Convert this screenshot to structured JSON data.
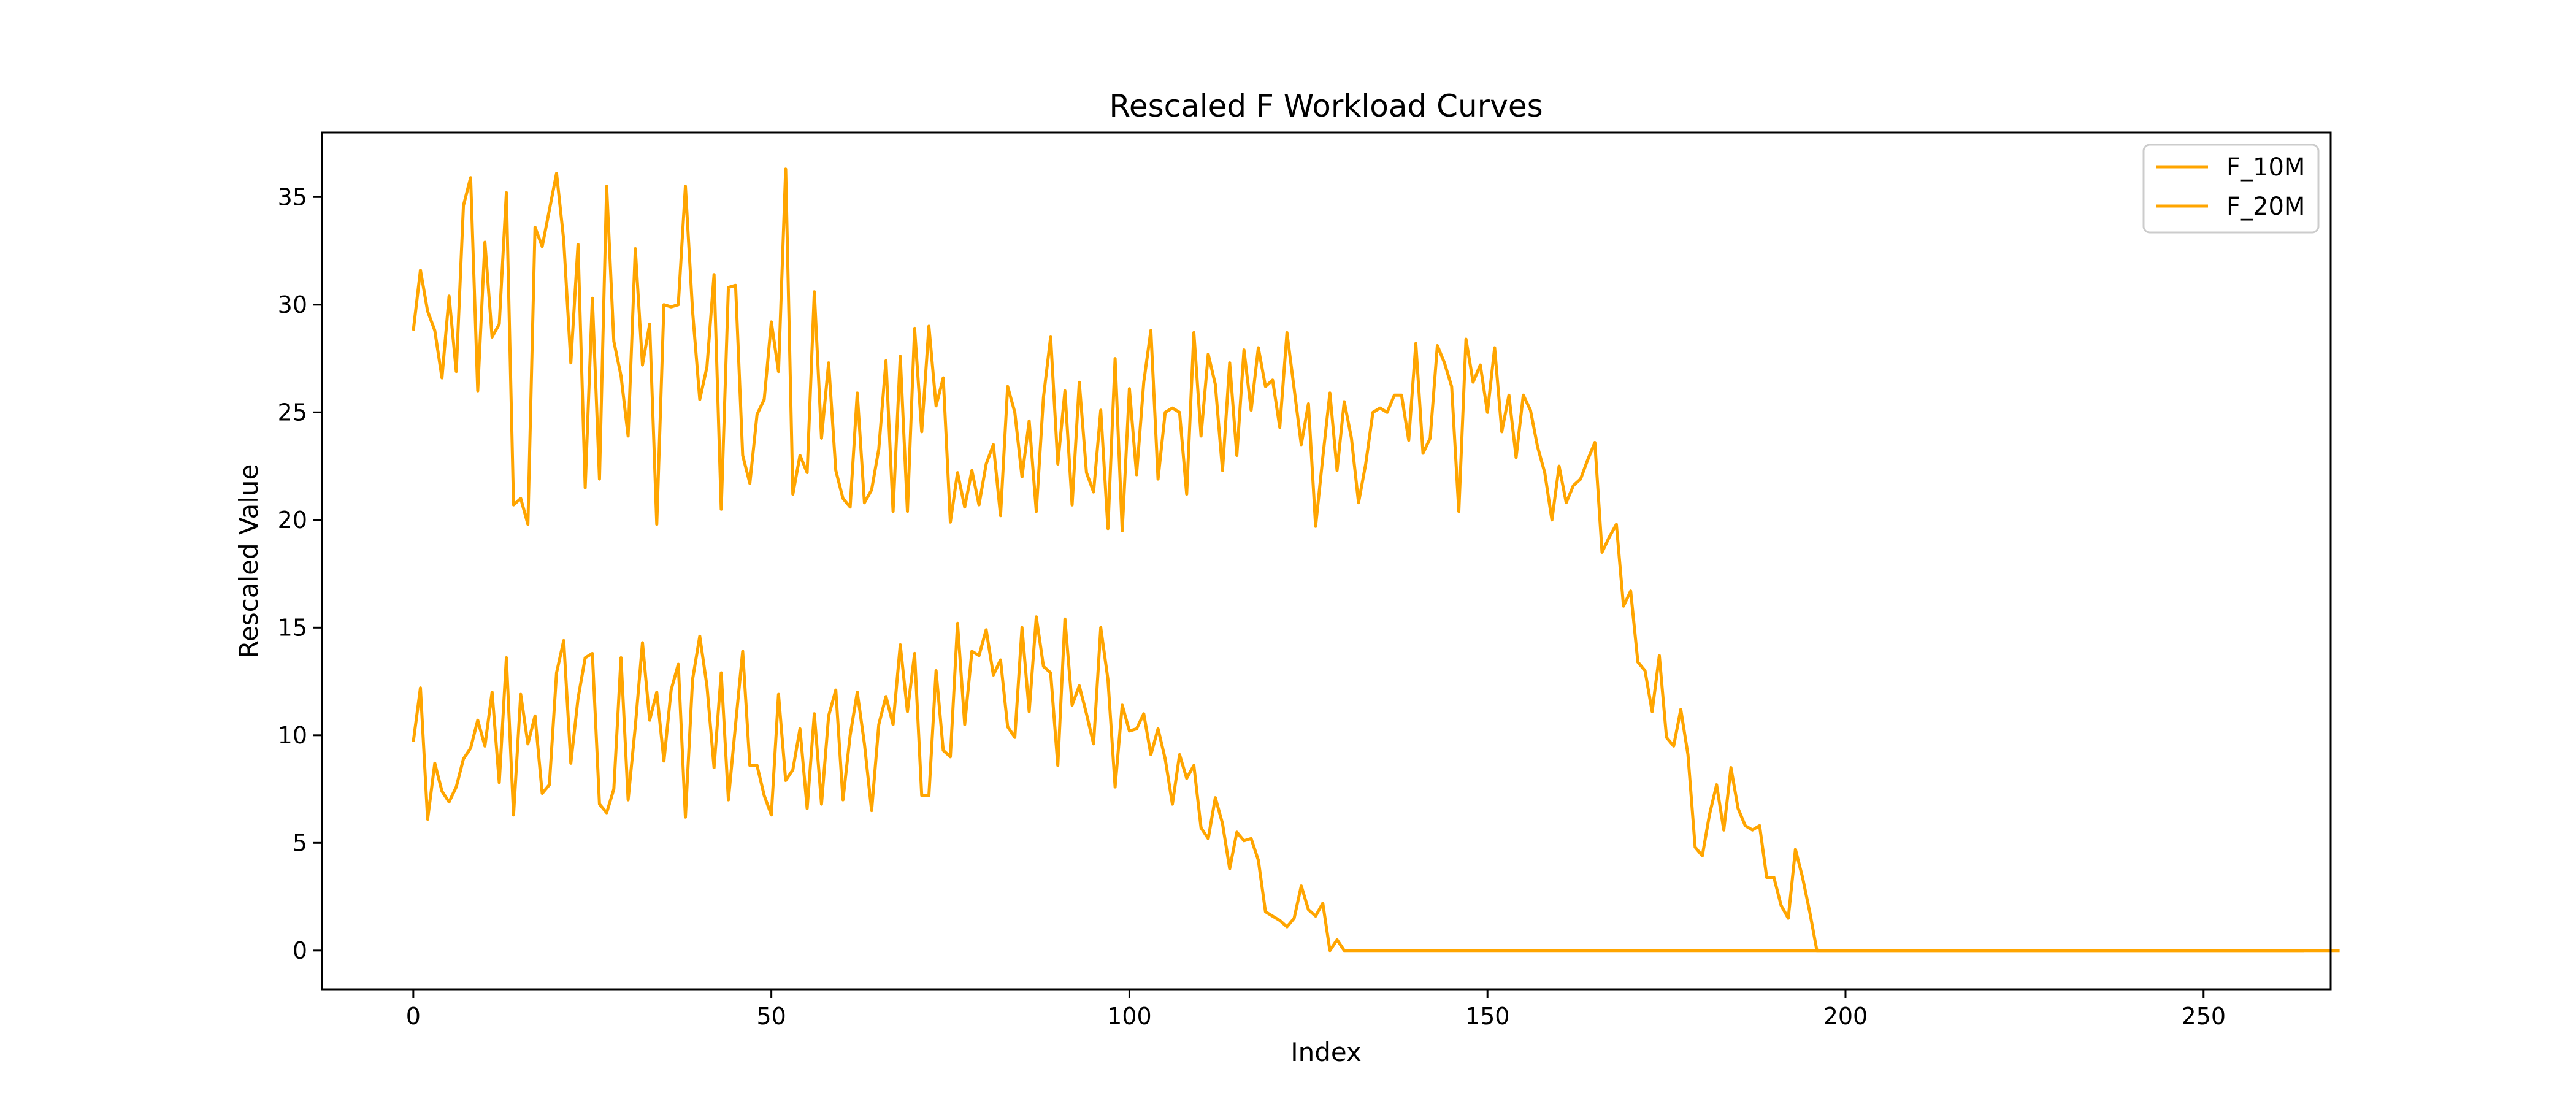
{
  "chart_data": {
    "type": "line",
    "title": "Rescaled F Workload Curves",
    "xlabel": "Index",
    "ylabel": "Rescaled Value",
    "xlim": [
      -12.75,
      267.75
    ],
    "ylim": [
      -1.8,
      38
    ],
    "xticks": [
      0,
      50,
      100,
      150,
      200,
      250
    ],
    "yticks": [
      0,
      5,
      10,
      15,
      20,
      25,
      30,
      35
    ],
    "grid": false,
    "legend_position": "top-right",
    "series": [
      {
        "name": "F_10M",
        "color": "#ffa500",
        "x_start": 0,
        "values": [
          9.7,
          12.2,
          6.1,
          8.7,
          7.4,
          6.9,
          7.6,
          8.9,
          9.4,
          10.7,
          9.5,
          12.0,
          7.8,
          13.6,
          6.3,
          11.9,
          9.6,
          10.9,
          7.3,
          7.7,
          12.9,
          14.4,
          8.7,
          11.7,
          13.6,
          13.8,
          6.8,
          6.4,
          7.5,
          13.6,
          7.0,
          10.4,
          14.3,
          10.7,
          12.0,
          8.8,
          12.1,
          13.3,
          6.2,
          12.6,
          14.6,
          12.3,
          8.5,
          12.9,
          7.0,
          10.5,
          13.9,
          8.6,
          8.6,
          7.2,
          6.3,
          11.9,
          7.9,
          8.4,
          10.3,
          6.6,
          11.0,
          6.8,
          10.9,
          12.1,
          7.0,
          10.0,
          12.0,
          9.6,
          6.5,
          10.5,
          11.8,
          10.5,
          14.2,
          11.1,
          13.8,
          7.2,
          7.2,
          13.0,
          9.3,
          9.0,
          15.2,
          10.5,
          13.9,
          13.7,
          14.9,
          12.8,
          13.5,
          10.4,
          9.9,
          15.0,
          11.1,
          15.5,
          13.2,
          12.9,
          8.6,
          15.4,
          11.4,
          12.3,
          11.0,
          9.6,
          15.0,
          12.6,
          7.6,
          11.4,
          10.2,
          10.3,
          11.0,
          9.1,
          10.3,
          8.9,
          6.8,
          9.1,
          8.0,
          8.6,
          5.7,
          5.2,
          7.1,
          5.9,
          3.8,
          5.5,
          5.1,
          5.2,
          4.2,
          1.8,
          1.6,
          1.4,
          1.1,
          1.5,
          3.0,
          1.9,
          1.6,
          2.2,
          0.0,
          0.5,
          0.0,
          0.0,
          0.0,
          0.0,
          0.0,
          0.0,
          0.0,
          0.0,
          0.0,
          0.0,
          0.0,
          0.0,
          0.0,
          0.0,
          0.0,
          0.0,
          0.0,
          0.0,
          0.0,
          0.0,
          0.0,
          0.0,
          0.0,
          0.0,
          0.0,
          0.0,
          0.0,
          0.0,
          0.0,
          0.0,
          0.0,
          0.0,
          0.0,
          0.0,
          0.0,
          0.0,
          0.0,
          0.0,
          0.0,
          0.0,
          0.0,
          0.0,
          0.0,
          0.0,
          0.0,
          0.0,
          0.0,
          0.0,
          0.0,
          0.0,
          0.0,
          0.0,
          0.0,
          0.0,
          0.0,
          0.0,
          0.0,
          0.0,
          0.0,
          0.0,
          0.0,
          0.0,
          0.0,
          0.0,
          0.0,
          0.0,
          0.0,
          0.0,
          0.0,
          0.0,
          0.0,
          0.0,
          0.0,
          0.0,
          0.0,
          0.0,
          0.0,
          0.0,
          0.0,
          0.0,
          0.0,
          0.0,
          0.0,
          0.0,
          0.0,
          0.0,
          0.0,
          0.0,
          0.0,
          0.0,
          0.0,
          0.0,
          0.0,
          0.0,
          0.0,
          0.0,
          0.0,
          0.0,
          0.0,
          0.0,
          0.0,
          0.0,
          0.0,
          0.0,
          0.0,
          0.0,
          0.0,
          0.0,
          0.0,
          0.0,
          0.0,
          0.0,
          0.0,
          0.0,
          0.0,
          0.0,
          0.0,
          0.0,
          0.0,
          0.0,
          0.0,
          0.0,
          0.0,
          0.0,
          0.0,
          0.0,
          0.0,
          0.0,
          0.0,
          0.0,
          0.0,
          0.0,
          0.0,
          0.0,
          0.0,
          0.0,
          0.0,
          0.0,
          0.0,
          0.0
        ]
      },
      {
        "name": "F_20M",
        "color": "#ffa500",
        "x_start": 0,
        "values": [
          28.8,
          31.6,
          29.7,
          28.8,
          26.6,
          30.4,
          26.9,
          34.6,
          35.9,
          26.0,
          32.9,
          28.5,
          29.1,
          35.2,
          20.7,
          21.0,
          19.8,
          33.6,
          32.7,
          34.4,
          36.1,
          33.0,
          27.3,
          32.8,
          21.5,
          30.3,
          21.9,
          35.5,
          28.3,
          26.7,
          23.9,
          32.6,
          27.2,
          29.1,
          19.8,
          30.0,
          29.9,
          30.0,
          35.5,
          29.7,
          25.6,
          27.1,
          31.4,
          20.5,
          30.8,
          30.9,
          23.0,
          21.7,
          24.9,
          25.6,
          29.2,
          26.9,
          36.3,
          21.2,
          23.0,
          22.2,
          30.6,
          23.8,
          27.3,
          22.3,
          21.0,
          20.6,
          25.9,
          20.8,
          21.4,
          23.3,
          27.4,
          20.4,
          27.6,
          20.4,
          28.9,
          24.1,
          29.0,
          25.3,
          26.6,
          19.9,
          22.2,
          20.6,
          22.3,
          20.7,
          22.6,
          23.5,
          20.2,
          26.2,
          25.0,
          22.0,
          24.6,
          20.4,
          25.7,
          28.5,
          22.6,
          26.0,
          20.7,
          26.4,
          22.2,
          21.3,
          25.1,
          19.6,
          27.5,
          19.5,
          26.1,
          22.1,
          26.4,
          28.8,
          21.9,
          25.0,
          25.2,
          25.0,
          21.2,
          28.7,
          23.9,
          27.7,
          26.3,
          22.3,
          27.3,
          23.0,
          27.9,
          25.1,
          28.0,
          26.2,
          26.5,
          24.3,
          28.7,
          26.1,
          23.5,
          25.4,
          19.7,
          22.9,
          25.9,
          22.3,
          25.5,
          23.8,
          20.8,
          22.6,
          25.0,
          25.2,
          25.0,
          25.8,
          25.8,
          23.7,
          28.2,
          23.1,
          23.8,
          28.1,
          27.3,
          26.2,
          20.4,
          28.4,
          26.4,
          27.2,
          25.0,
          28.0,
          24.1,
          25.8,
          22.9,
          25.8,
          25.1,
          23.4,
          22.2,
          20.0,
          22.5,
          20.8,
          21.6,
          21.9,
          22.8,
          23.6,
          18.5,
          19.2,
          19.8,
          16.0,
          16.7,
          13.4,
          13.0,
          11.1,
          13.7,
          9.9,
          9.5,
          11.2,
          9.1,
          4.8,
          4.4,
          6.3,
          7.7,
          5.6,
          8.5,
          6.6,
          5.8,
          5.6,
          5.8,
          3.4,
          3.4,
          2.1,
          1.5,
          4.7,
          3.4,
          1.8,
          0.0,
          0.0,
          0.0,
          0.0,
          0.0,
          0.0,
          0.0,
          0.0,
          0.0,
          0.0,
          0.0,
          0.0,
          0.0,
          0.0,
          0.0,
          0.0,
          0.0,
          0.0,
          0.0,
          0.0,
          0.0,
          0.0,
          0.0,
          0.0,
          0.0,
          0.0,
          0.0,
          0.0,
          0.0,
          0.0,
          0.0,
          0.0,
          0.0,
          0.0,
          0.0,
          0.0,
          0.0,
          0.0,
          0.0,
          0.0,
          0.0,
          0.0,
          0.0,
          0.0,
          0.0,
          0.0,
          0.0,
          0.0,
          0.0,
          0.0,
          0.0,
          0.0,
          0.0,
          0.0,
          0.0,
          0.0,
          0.0,
          0.0,
          0.0,
          0.0,
          0.0,
          0.0,
          0.0,
          0.0,
          0.0,
          0.0,
          0.0,
          0.0,
          0.0
        ]
      }
    ]
  }
}
